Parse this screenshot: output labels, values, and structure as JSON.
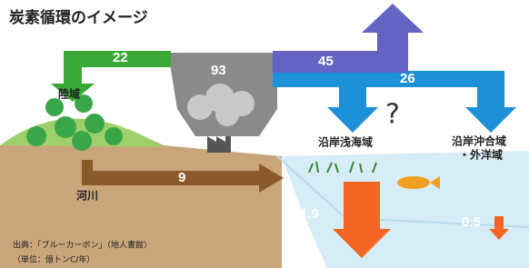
{
  "title": "炭素循環のイメージ",
  "flows": [
    22,
    93,
    45,
    26,
    9,
    1.9,
    0.5
  ],
  "regions": {
    "land": "陸域",
    "river": "河川",
    "shallow": "沿岸浅海域",
    "offshore": [
      "沿岸沖合域",
      "・外洋域"
    ]
  },
  "question": "?",
  "source": "出典：「ブルーカーボン」（地人書館）",
  "unit": "（単位：億トンC/年）"
}
